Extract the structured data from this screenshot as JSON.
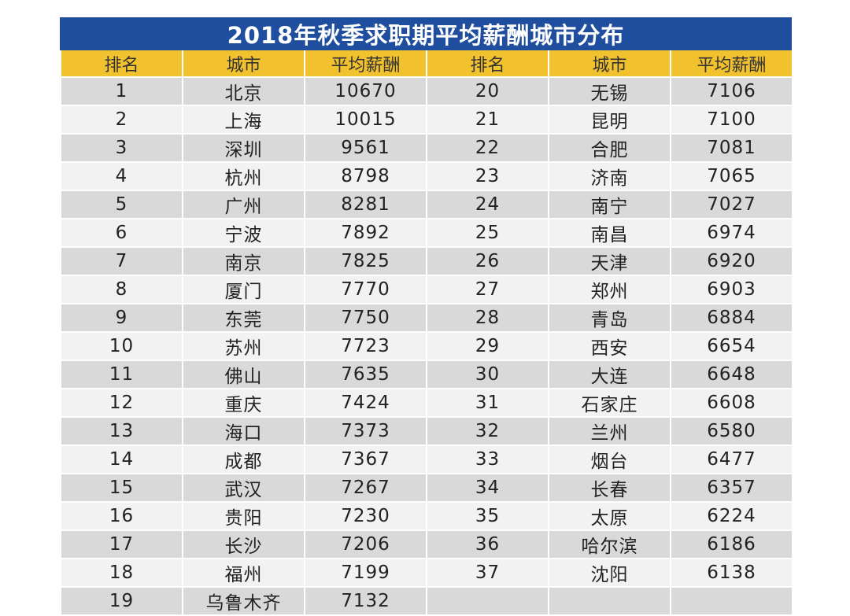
{
  "title": "2018年秋季求职期平均薪酬城市分布",
  "headers": [
    "排名",
    "城市",
    "平均薪酬",
    "排名",
    "城市",
    "平均薪酬"
  ],
  "rows": [
    [
      "1",
      "北京",
      "10670",
      "20",
      "无锡",
      "7106"
    ],
    [
      "2",
      "上海",
      "10015",
      "21",
      "昆明",
      "7100"
    ],
    [
      "3",
      "深圳",
      "9561",
      "22",
      "合肥",
      "7081"
    ],
    [
      "4",
      "杭州",
      "8798",
      "23",
      "济南",
      "7065"
    ],
    [
      "5",
      "广州",
      "8281",
      "24",
      "南宁",
      "7027"
    ],
    [
      "6",
      "宁波",
      "7892",
      "25",
      "南昌",
      "6974"
    ],
    [
      "7",
      "南京",
      "7825",
      "26",
      "天津",
      "6920"
    ],
    [
      "8",
      "厦门",
      "7770",
      "27",
      "郑州",
      "6903"
    ],
    [
      "9",
      "东莞",
      "7750",
      "28",
      "青岛",
      "6884"
    ],
    [
      "10",
      "苏州",
      "7723",
      "29",
      "西安",
      "6654"
    ],
    [
      "11",
      "佛山",
      "7635",
      "30",
      "大连",
      "6648"
    ],
    [
      "12",
      "重庆",
      "7424",
      "31",
      "石家庄",
      "6608"
    ],
    [
      "13",
      "海口",
      "7373",
      "32",
      "兰州",
      "6580"
    ],
    [
      "14",
      "成都",
      "7367",
      "33",
      "烟台",
      "6477"
    ],
    [
      "15",
      "武汉",
      "7267",
      "34",
      "长春",
      "6357"
    ],
    [
      "16",
      "贵阳",
      "7230",
      "35",
      "太原",
      "6224"
    ],
    [
      "17",
      "长沙",
      "7206",
      "36",
      "哈尔滨",
      "6186"
    ],
    [
      "18",
      "福州",
      "7199",
      "37",
      "沈阳",
      "6138"
    ],
    [
      "19",
      "乌鲁木齐",
      "7132",
      "",
      "",
      ""
    ]
  ],
  "colors": {
    "title_bg": "#1f4e9e",
    "header_bg": "#f2c12e",
    "row_dark": "#d9d9d9",
    "row_light": "#f2f2f2"
  }
}
